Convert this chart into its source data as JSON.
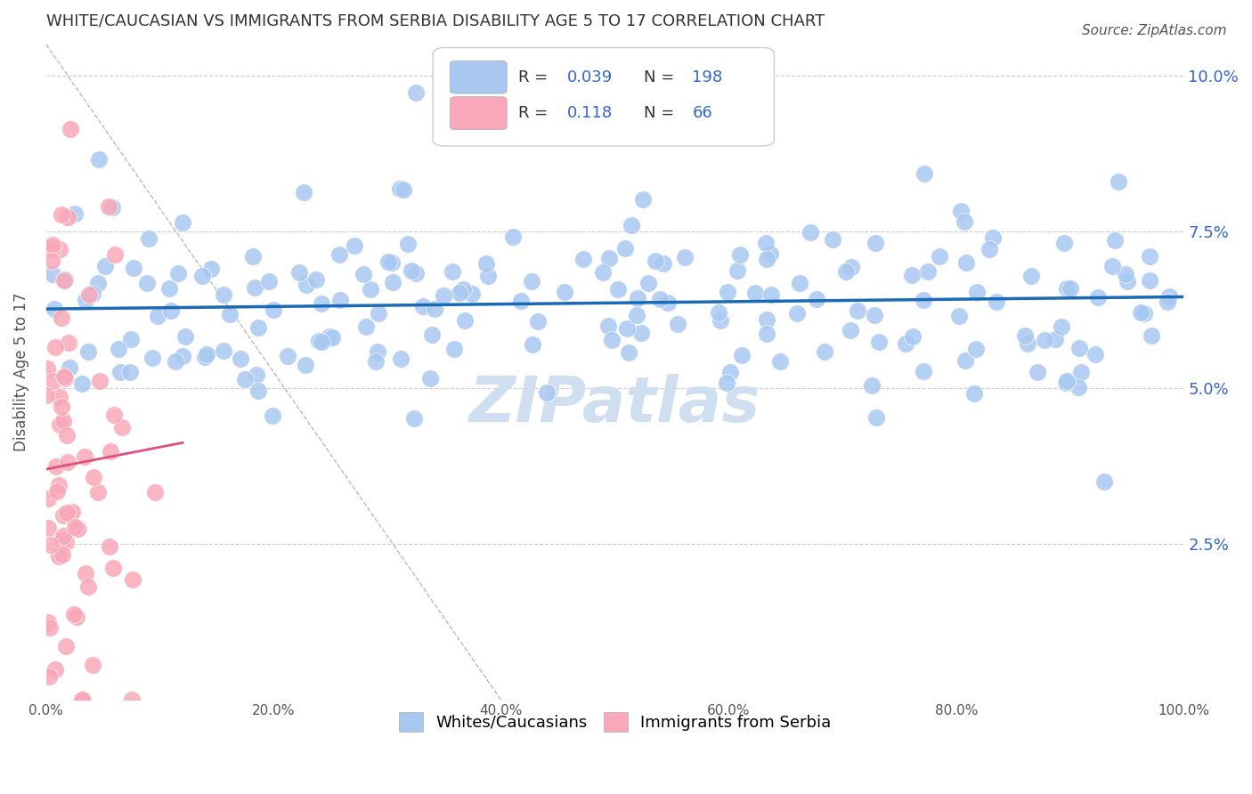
{
  "title": "WHITE/CAUCASIAN VS IMMIGRANTS FROM SERBIA DISABILITY AGE 5 TO 17 CORRELATION CHART",
  "source": "Source: ZipAtlas.com",
  "ylabel": "Disability Age 5 to 17",
  "xlim": [
    0,
    100
  ],
  "ylim": [
    0,
    10.5
  ],
  "yticks": [
    0,
    2.5,
    5.0,
    7.5,
    10.0
  ],
  "xticks": [
    0,
    20,
    40,
    60,
    80,
    100
  ],
  "xtick_labels": [
    "0.0%",
    "20.0%",
    "40.0%",
    "60.0%",
    "80.0%",
    "100.0%"
  ],
  "ytick_labels": [
    "",
    "2.5%",
    "5.0%",
    "7.5%",
    "10.0%"
  ],
  "legend_labels": [
    "Whites/Caucasians",
    "Immigrants from Serbia"
  ],
  "r_blue": 0.039,
  "n_blue": 198,
  "r_pink": 0.118,
  "n_pink": 66,
  "blue_color": "#a8c8f0",
  "pink_color": "#f8a8b8",
  "blue_line_color": "#1a6ab5",
  "pink_line_color": "#e05080",
  "grid_color": "#cccccc",
  "title_color": "#333333",
  "right_axis_color": "#3366cc",
  "watermark_color": "#d0dff0",
  "background_color": "#ffffff",
  "seed_blue": 42,
  "seed_pink": 7
}
